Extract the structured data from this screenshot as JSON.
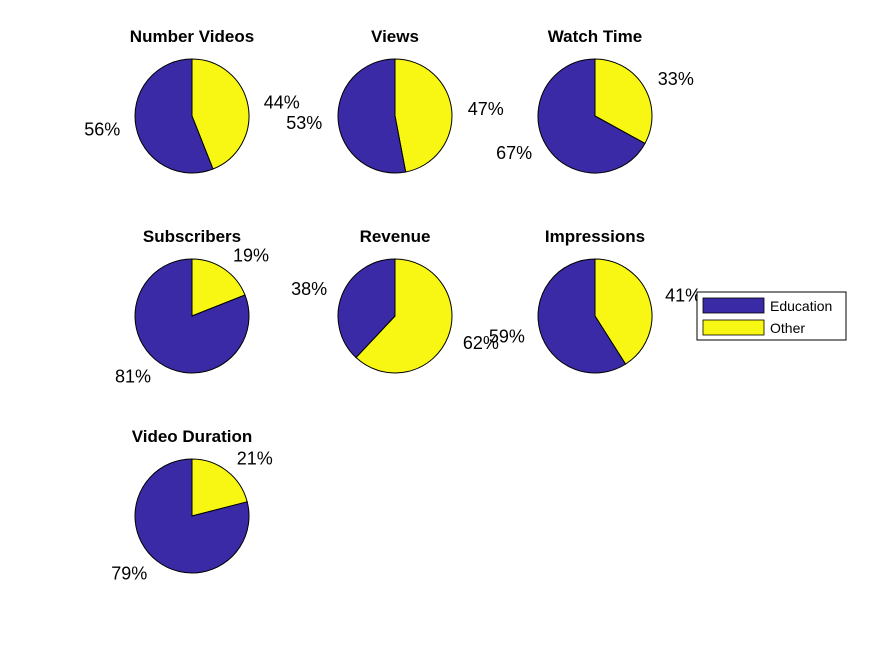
{
  "colors": {
    "education": "#3a2aa6",
    "other": "#f7f713",
    "edge": "#000000"
  },
  "legend": {
    "placement": "right",
    "entries": [
      {
        "label": "Education",
        "color": "#3a2aa6"
      },
      {
        "label": "Other",
        "color": "#f7f713"
      }
    ]
  },
  "chart_data": [
    {
      "type": "pie",
      "title": "Number Videos",
      "categories": [
        "Education",
        "Other"
      ],
      "values": [
        56,
        44
      ],
      "labels": [
        "56%",
        "44%"
      ]
    },
    {
      "type": "pie",
      "title": "Views",
      "categories": [
        "Education",
        "Other"
      ],
      "values": [
        53,
        47
      ],
      "labels": [
        "53%",
        "47%"
      ]
    },
    {
      "type": "pie",
      "title": "Watch Time",
      "categories": [
        "Education",
        "Other"
      ],
      "values": [
        67,
        33
      ],
      "labels": [
        "67%",
        "33%"
      ]
    },
    {
      "type": "pie",
      "title": "Subscribers",
      "categories": [
        "Education",
        "Other"
      ],
      "values": [
        81,
        19
      ],
      "labels": [
        "81%",
        "19%"
      ]
    },
    {
      "type": "pie",
      "title": "Revenue",
      "categories": [
        "Education",
        "Other"
      ],
      "values": [
        38,
        62
      ],
      "labels": [
        "38%",
        "62%"
      ]
    },
    {
      "type": "pie",
      "title": "Impressions",
      "categories": [
        "Education",
        "Other"
      ],
      "values": [
        59,
        41
      ],
      "labels": [
        "59%",
        "41%"
      ]
    },
    {
      "type": "pie",
      "title": "Video Duration",
      "categories": [
        "Education",
        "Other"
      ],
      "values": [
        79,
        21
      ],
      "labels": [
        "79%",
        "21%"
      ]
    }
  ]
}
